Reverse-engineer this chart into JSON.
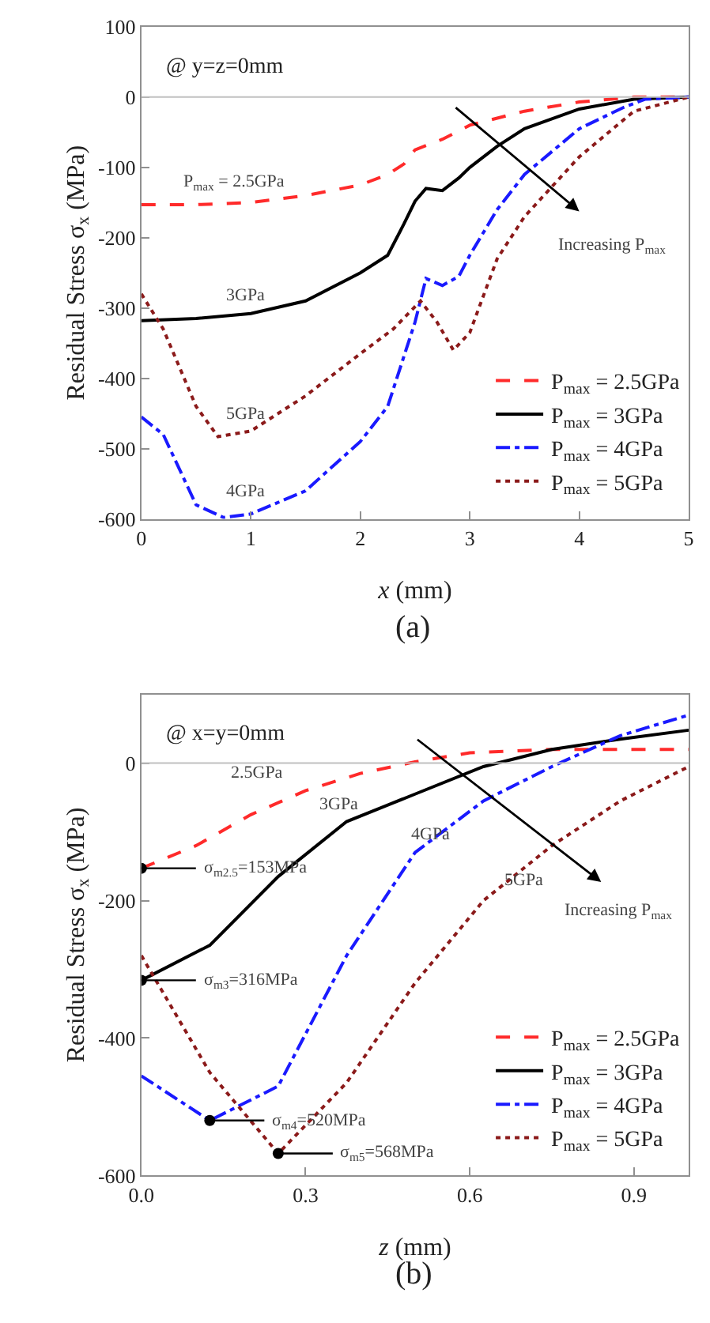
{
  "chart_data": [
    {
      "type": "line",
      "title": "(a)",
      "xlabel": "x (mm)",
      "ylabel": "Residual Stress σ$_{x}$ (MPa)",
      "xlim": [
        0,
        5
      ],
      "xticks": [
        0,
        1,
        2,
        3,
        4,
        5
      ],
      "ylim": [
        -600,
        100
      ],
      "yticks": [
        -600,
        -500,
        -400,
        -300,
        -200,
        -100,
        0,
        100
      ],
      "legend": "bottom right",
      "ref_lines": [
        {
          "axis": "y",
          "value": 0,
          "color": "#c0c0c0"
        }
      ],
      "series": [
        {
          "name": "P$_{max}$ = 2.5GPa",
          "color": "#ff2a2a",
          "line_style": "dashed",
          "x": [
            0,
            0.5,
            1,
            1.5,
            2,
            2.25,
            2.4,
            2.5,
            2.75,
            3,
            3.5,
            4,
            4.5,
            5
          ],
          "values": [
            -153,
            -153,
            -150,
            -140,
            -125,
            -110,
            -95,
            -75,
            -60,
            -40,
            -20,
            -7,
            0,
            0
          ]
        },
        {
          "name": "P$_{max}$ = 3GPa",
          "color": "#000000",
          "line_style": "solid",
          "x": [
            0,
            0.5,
            1,
            1.5,
            2,
            2.25,
            2.4,
            2.5,
            2.6,
            2.75,
            2.9,
            3,
            3.25,
            3.5,
            4,
            4.5,
            5
          ],
          "values": [
            -318,
            -315,
            -308,
            -290,
            -250,
            -225,
            -180,
            -148,
            -130,
            -133,
            -115,
            -100,
            -70,
            -45,
            -17,
            -3,
            0
          ]
        },
        {
          "name": "P$_{max}$ = 4GPa",
          "color": "#1a1aff",
          "line_style": "dashdot",
          "x": [
            0,
            0.2,
            0.5,
            0.75,
            1,
            1.5,
            2,
            2.25,
            2.5,
            2.6,
            2.75,
            2.9,
            3,
            3.25,
            3.5,
            4,
            4.4,
            4.6,
            5
          ],
          "values": [
            -455,
            -480,
            -580,
            -598,
            -593,
            -560,
            -490,
            -440,
            -320,
            -258,
            -268,
            -255,
            -225,
            -160,
            -110,
            -45,
            -15,
            -3,
            0
          ]
        },
        {
          "name": "P$_{max}$ = 5GPa",
          "color": "#8b1a1a",
          "line_style": "dotted",
          "x": [
            0,
            0.2,
            0.5,
            0.7,
            1,
            1.5,
            2,
            2.3,
            2.55,
            2.7,
            2.85,
            3,
            3.25,
            3.5,
            4,
            4.5,
            5
          ],
          "values": [
            -280,
            -330,
            -440,
            -483,
            -475,
            -425,
            -365,
            -330,
            -290,
            -320,
            -360,
            -335,
            -230,
            -170,
            -85,
            -20,
            0
          ]
        }
      ],
      "annotations": [
        "@ y=z=0mm",
        "P$_{max}$ = 2.5GPa",
        "3GPa",
        "5GPa",
        "4GPa",
        "Increasing P$_{max}$"
      ]
    },
    {
      "type": "line",
      "title": "(b)",
      "xlabel": "z (mm)",
      "ylabel": "Residual Stress σ$_{x}$ (MPa)",
      "xlim": [
        0,
        1
      ],
      "xticks": [
        {
          "value": 0,
          "label": "0.0"
        },
        0.3,
        0.6,
        0.9
      ],
      "ylim": [
        -600,
        100
      ],
      "yticks": [
        -600,
        -400,
        -200,
        0
      ],
      "legend": "bottom right",
      "ref_lines": [
        {
          "axis": "y",
          "value": 0,
          "color": "#c0c0c0"
        }
      ],
      "series": [
        {
          "name": "P$_{max}$ = 2.5GPa",
          "color": "#ff2a2a",
          "line_style": "dashed",
          "x": [
            0,
            0.1,
            0.2,
            0.3,
            0.4,
            0.5,
            0.6,
            0.75,
            0.9,
            1.0
          ],
          "values": [
            -153,
            -120,
            -75,
            -40,
            -15,
            2,
            15,
            20,
            20,
            20
          ]
        },
        {
          "name": "P$_{max}$ = 3GPa",
          "color": "#000000",
          "line_style": "solid",
          "x": [
            0,
            0.125,
            0.25,
            0.375,
            0.5,
            0.625,
            0.75,
            0.875,
            1.0
          ],
          "values": [
            -316,
            -265,
            -165,
            -85,
            -45,
            -5,
            20,
            35,
            48
          ]
        },
        {
          "name": "P$_{max}$ = 4GPa",
          "color": "#1a1aff",
          "line_style": "dashdot",
          "x": [
            0,
            0.125,
            0.25,
            0.375,
            0.5,
            0.625,
            0.75,
            0.875,
            1.0
          ],
          "values": [
            -455,
            -520,
            -470,
            -280,
            -130,
            -55,
            -5,
            40,
            70
          ]
        },
        {
          "name": "P$_{max}$ = 5GPa",
          "color": "#8b1a1a",
          "line_style": "dotted",
          "x": [
            0,
            0.125,
            0.25,
            0.375,
            0.5,
            0.625,
            0.75,
            0.875,
            1.0
          ],
          "values": [
            -280,
            -450,
            -568,
            -465,
            -320,
            -200,
            -120,
            -55,
            -5
          ]
        },
        {
          "type": "scatter",
          "color": "#000000",
          "marker": "circle",
          "x": [
            0,
            0,
            0.125,
            0.25
          ],
          "values": [
            -153,
            -316,
            -520,
            -568
          ]
        }
      ],
      "annotations": [
        "@ x=y=0mm",
        "σ$_{m2.5}$=153MPa",
        "σ$_{m3}$=316MPa",
        "σ$_{m4}$=520MPa",
        "σ$_{m5}$=568MPa",
        "2.5GPa",
        "3GPa",
        "4GPa",
        "5GPa",
        "Increasing P$_{max}$"
      ]
    }
  ]
}
